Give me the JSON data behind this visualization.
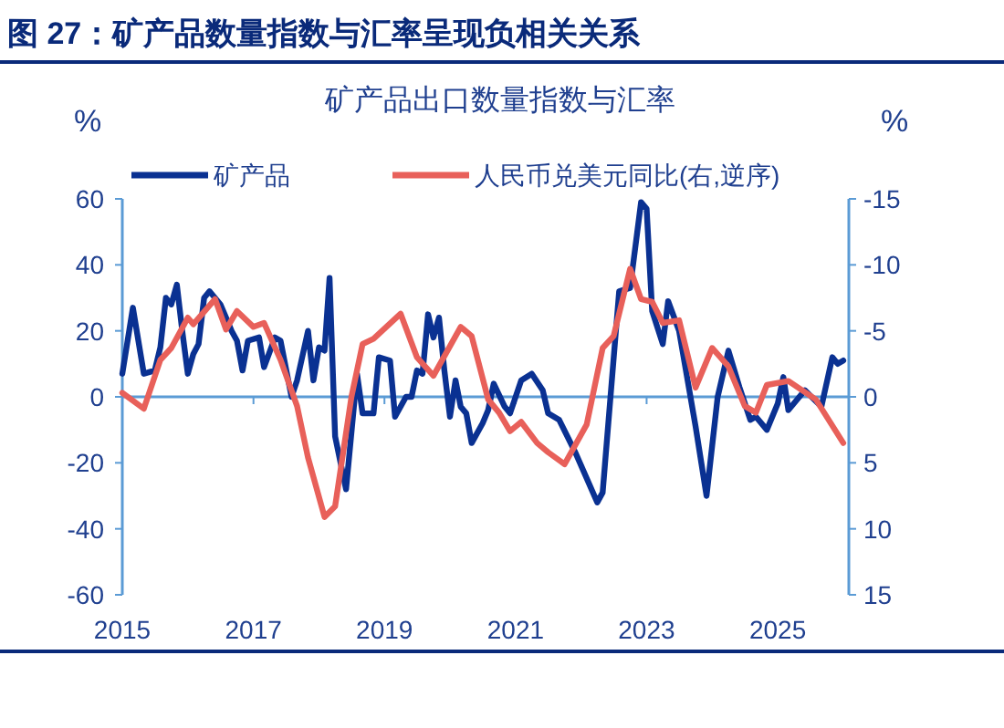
{
  "chart_data": {
    "type": "line",
    "title": "图 27：矿产品数量指数与汇率呈现负相关关系",
    "subtitle": "矿产品出口数量指数与汇率",
    "ylabel": "%",
    "y2label": "%",
    "xlim": [
      "2015-01",
      "2026-02"
    ],
    "xticks": [
      {
        "value": "2015-01",
        "label": "2015"
      },
      {
        "value": "2017-01",
        "label": "2017"
      },
      {
        "value": "2019-01",
        "label": "2019"
      },
      {
        "value": "2021-01",
        "label": "2021"
      },
      {
        "value": "2023-01",
        "label": "2023"
      },
      {
        "value": "2025-01",
        "label": "2025"
      }
    ],
    "ylim": [
      -60,
      60
    ],
    "yticks": [
      -60,
      -40,
      -20,
      0,
      20,
      40,
      60
    ],
    "y2lim": [
      15,
      -15
    ],
    "y2ticks": [
      15,
      10,
      5,
      0,
      -5,
      -10,
      -15
    ],
    "legend": "top",
    "grid": false,
    "ref_lines": [
      {
        "axis": "y",
        "value": 0,
        "color": "#5b9bd5"
      }
    ],
    "series": [
      {
        "name": "矿产品",
        "color": "#0a3192",
        "x": [
          "2015-01",
          "2015-03",
          "2015-05",
          "2015-07",
          "2015-08",
          "2015-09",
          "2015-10",
          "2015-11",
          "2015-12",
          "2016-01",
          "2016-02",
          "2016-03",
          "2016-04",
          "2016-05",
          "2016-07",
          "2016-09",
          "2016-10",
          "2016-11",
          "2016-12",
          "2017-02",
          "2017-03",
          "2017-05",
          "2017-06",
          "2017-08",
          "2017-09",
          "2017-11",
          "2017-12",
          "2018-01",
          "2018-02",
          "2018-03",
          "2018-04",
          "2018-06",
          "2018-08",
          "2018-09",
          "2018-11",
          "2018-12",
          "2019-02",
          "2019-03",
          "2019-05",
          "2019-06",
          "2019-07",
          "2019-08",
          "2019-09",
          "2019-10",
          "2019-11",
          "2019-12",
          "2020-01",
          "2020-02",
          "2020-03",
          "2020-04",
          "2020-05",
          "2020-07",
          "2020-08",
          "2020-09",
          "2020-11",
          "2020-12",
          "2021-02",
          "2021-04",
          "2021-06",
          "2021-07",
          "2021-09",
          "2021-12",
          "2022-04",
          "2022-05",
          "2022-08",
          "2022-10",
          "2022-12",
          "2023-01",
          "2023-02",
          "2023-04",
          "2023-05",
          "2023-07",
          "2023-10",
          "2023-12",
          "2024-02",
          "2024-04",
          "2024-06",
          "2024-08",
          "2024-09",
          "2024-11",
          "2025-01",
          "2025-02",
          "2025-03",
          "2025-06",
          "2025-09",
          "2025-11",
          "2025-12",
          "2026-01"
        ],
        "values": [
          7,
          27,
          7,
          8,
          15,
          30,
          28,
          34,
          20,
          7,
          13,
          16,
          30,
          32,
          28,
          20,
          17,
          8,
          17,
          18,
          9,
          18,
          17,
          0,
          5,
          20,
          5,
          15,
          14,
          36,
          -12,
          -28,
          7,
          -5,
          -5,
          12,
          11,
          -6,
          0,
          0,
          8,
          7,
          25,
          18,
          24,
          8,
          -6,
          5,
          -3,
          -5,
          -14,
          -8,
          -4,
          4,
          -3,
          -5,
          5,
          7,
          2,
          -5,
          -7,
          -17,
          -32,
          -29,
          32,
          33,
          59,
          57,
          26,
          16,
          29,
          20,
          -9,
          -30,
          0,
          14,
          3,
          -7,
          -6,
          -10,
          -2,
          6,
          -4,
          2,
          -3,
          12,
          10,
          11
        ]
      },
      {
        "name": "人民币兑美元同比(右,逆序)",
        "color": "#e8605a",
        "axis": "y2",
        "x": [
          "2015-01",
          "2015-05",
          "2015-08",
          "2015-10",
          "2016-01",
          "2016-02",
          "2016-06",
          "2016-08",
          "2016-10",
          "2017-01",
          "2017-03",
          "2017-06",
          "2017-09",
          "2017-11",
          "2018-02",
          "2018-04",
          "2018-07",
          "2018-09",
          "2018-11",
          "2019-04",
          "2019-07",
          "2019-10",
          "2020-03",
          "2020-05",
          "2020-08",
          "2020-10",
          "2020-12",
          "2021-02",
          "2021-05",
          "2021-07",
          "2021-10",
          "2022-02",
          "2022-05",
          "2022-07",
          "2022-10",
          "2022-12",
          "2023-02",
          "2023-04",
          "2023-07",
          "2023-10",
          "2024-01",
          "2024-04",
          "2024-07",
          "2024-09",
          "2024-11",
          "2025-03",
          "2025-08",
          "2026-01"
        ],
        "values": [
          -0.3,
          0.9,
          -2.8,
          -3.7,
          -6,
          -5.5,
          -7.4,
          -5.1,
          -6.5,
          -5.3,
          -5.6,
          -2.8,
          0.7,
          4.6,
          9.1,
          8.3,
          0,
          -4,
          -4.4,
          -6.3,
          -3,
          -1.6,
          -5.3,
          -4.6,
          0.2,
          1.2,
          2.6,
          1.9,
          3.5,
          4.2,
          5.1,
          2.1,
          -3.7,
          -4.6,
          -9.7,
          -7.4,
          -7.2,
          -5.6,
          -5.8,
          -0.7,
          -3.7,
          -2.3,
          0.7,
          1.2,
          -0.9,
          -1.2,
          0.2,
          3.5
        ]
      }
    ]
  }
}
